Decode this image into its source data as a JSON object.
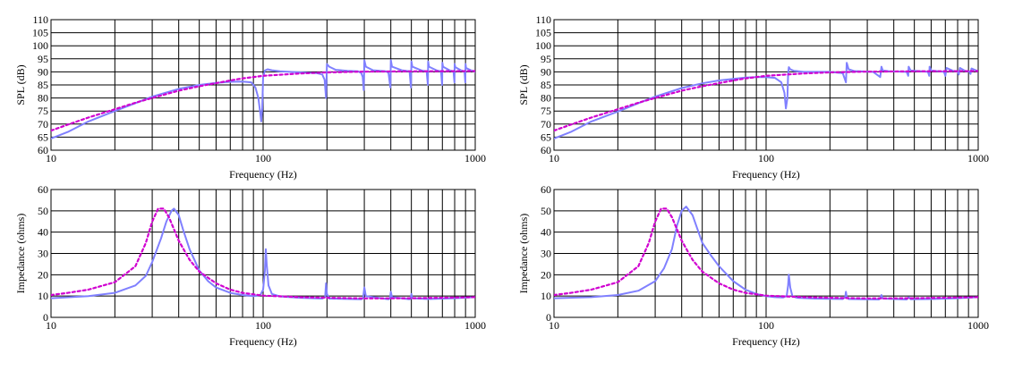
{
  "colors": {
    "solid": "#8080ff",
    "dashed": "#d000d0",
    "grid": "#000000",
    "background": "#ffffff"
  },
  "chart_data": [
    {
      "type": "line",
      "panel": "top-left",
      "xlabel": "Frequency (Hz)",
      "ylabel": "SPL (dB)",
      "xscale": "log",
      "xlim": [
        10,
        1000
      ],
      "ylim": [
        60,
        110
      ],
      "xticks": [
        10,
        100,
        1000
      ],
      "yticks": [
        60,
        65,
        70,
        75,
        80,
        85,
        90,
        95,
        100,
        105,
        110
      ],
      "grid": true,
      "series": [
        {
          "style": "solid",
          "x": [
            10,
            12,
            15,
            20,
            25,
            30,
            40,
            50,
            60,
            70,
            80,
            88,
            92,
            95,
            97,
            98,
            99,
            100,
            102,
            105,
            110,
            120,
            150,
            180,
            190,
            195,
            198,
            200,
            205,
            220,
            250,
            280,
            290,
            295,
            298,
            300,
            305,
            330,
            380,
            390,
            398,
            400,
            405,
            450,
            490,
            498,
            500,
            505,
            560,
            590,
            598,
            600,
            605,
            660,
            690,
            698,
            700,
            705,
            760,
            790,
            798,
            800,
            805,
            860,
            890,
            898,
            900,
            905,
            960,
            990,
            1000
          ],
          "y": [
            64.5,
            67,
            71,
            75,
            78,
            80.5,
            83.5,
            85,
            85.8,
            86.2,
            86.3,
            86,
            84,
            80,
            74,
            71,
            76,
            88,
            90.5,
            91,
            90.6,
            90.2,
            89.8,
            89.5,
            89,
            87,
            80,
            93,
            92,
            90.8,
            90.4,
            90.2,
            89.6,
            88,
            83,
            94.5,
            92,
            90.6,
            90.2,
            89.6,
            84,
            94.5,
            92,
            90.6,
            90.2,
            84,
            94,
            92,
            90.5,
            90.2,
            85,
            94,
            92,
            90.5,
            90.2,
            85,
            93.5,
            92,
            90.5,
            90.2,
            86,
            93,
            91.8,
            90.5,
            90.2,
            86,
            93,
            91.5,
            90.5,
            90.2,
            90
          ]
        },
        {
          "style": "dashed",
          "x": [
            10,
            12,
            15,
            20,
            25,
            30,
            40,
            50,
            60,
            70,
            80,
            100,
            150,
            200,
            300,
            500,
            1000
          ],
          "y": [
            67.5,
            69.8,
            72.5,
            75.7,
            78.2,
            80,
            82.8,
            84.5,
            85.7,
            86.7,
            87.5,
            88.5,
            89.4,
            89.8,
            90.1,
            90.2,
            90.3
          ]
        }
      ]
    },
    {
      "type": "line",
      "panel": "top-right",
      "xlabel": "Frequency (Hz)",
      "ylabel": "SPL (dB)",
      "xscale": "log",
      "xlim": [
        10,
        1000
      ],
      "ylim": [
        60,
        110
      ],
      "xticks": [
        10,
        100,
        1000
      ],
      "yticks": [
        60,
        65,
        70,
        75,
        80,
        85,
        90,
        95,
        100,
        105,
        110
      ],
      "grid": true,
      "series": [
        {
          "style": "solid",
          "x": [
            10,
            12,
            15,
            20,
            25,
            30,
            40,
            50,
            60,
            70,
            80,
            90,
            100,
            110,
            118,
            122,
            124,
            126,
            127,
            128,
            130,
            135,
            150,
            200,
            230,
            238,
            240,
            245,
            260,
            320,
            345,
            350,
            355,
            380,
            460,
            468,
            470,
            480,
            540,
            580,
            588,
            590,
            600,
            650,
            690,
            700,
            710,
            760,
            800,
            810,
            820,
            870,
            910,
            920,
            930,
            1000
          ],
          "y": [
            64.5,
            67,
            71,
            74.8,
            78,
            80.5,
            83.8,
            85.6,
            86.7,
            87.3,
            87.8,
            88,
            88,
            87.7,
            86,
            82,
            76,
            80,
            89,
            91.8,
            91,
            90.4,
            90,
            90,
            89.5,
            86,
            93.5,
            91,
            90.3,
            90,
            88,
            92,
            90.5,
            90.2,
            90,
            88.5,
            92,
            90.5,
            90.2,
            90,
            88.5,
            92,
            90.5,
            90.2,
            90,
            88.5,
            91.5,
            90.4,
            90.2,
            89,
            91.5,
            90.3,
            90.1,
            89.2,
            91.3,
            90.2
          ]
        },
        {
          "style": "dashed",
          "x": [
            10,
            12,
            15,
            20,
            25,
            30,
            40,
            50,
            60,
            70,
            80,
            100,
            150,
            200,
            300,
            500,
            1000
          ],
          "y": [
            67.5,
            69.8,
            72.5,
            75.7,
            78.2,
            80,
            82.8,
            84.5,
            85.7,
            86.7,
            87.5,
            88.5,
            89.4,
            89.8,
            90.1,
            90.2,
            90.3
          ]
        }
      ]
    },
    {
      "type": "line",
      "panel": "bottom-left",
      "xlabel": "Frequency (Hz)",
      "ylabel": "Impedance (ohms)",
      "xscale": "log",
      "xlim": [
        10,
        1000
      ],
      "ylim": [
        0,
        60
      ],
      "xticks": [
        10,
        100,
        1000
      ],
      "yticks": [
        0,
        10,
        20,
        30,
        40,
        50,
        60
      ],
      "grid": true,
      "series": [
        {
          "style": "solid",
          "x": [
            10,
            15,
            20,
            25,
            28,
            30,
            33,
            35,
            37,
            38,
            40,
            42,
            45,
            50,
            55,
            60,
            70,
            80,
            90,
            97,
            100,
            102,
            103,
            104,
            106,
            110,
            120,
            150,
            190,
            196,
            198,
            200,
            205,
            290,
            296,
            300,
            305,
            390,
            396,
            400,
            405,
            490,
            496,
            500,
            505,
            600,
            700,
            800,
            1000
          ],
          "y": [
            9,
            10,
            11.5,
            15,
            19.5,
            26,
            37,
            45,
            50,
            51,
            48,
            41,
            32,
            22,
            17,
            14,
            11.5,
            10.5,
            10,
            10.5,
            13,
            22,
            32,
            25,
            15,
            11,
            9.8,
            9.2,
            8.8,
            9.5,
            16,
            11,
            8.8,
            8.5,
            9,
            14,
            10,
            8.5,
            8.8,
            12,
            9.5,
            8.5,
            8.7,
            11,
            9,
            8.6,
            8.8,
            9,
            9.5
          ]
        },
        {
          "style": "dashed",
          "x": [
            10,
            12,
            15,
            20,
            25,
            28,
            30,
            32,
            34,
            36,
            40,
            45,
            50,
            60,
            70,
            80,
            100,
            150,
            200,
            300,
            500,
            1000
          ],
          "y": [
            10.5,
            11.5,
            13,
            16.5,
            24,
            35,
            45,
            51,
            51,
            47,
            36,
            27,
            21.5,
            16,
            13,
            11.5,
            10.2,
            9.5,
            9.2,
            8.9,
            9,
            9.5
          ]
        }
      ]
    },
    {
      "type": "line",
      "panel": "bottom-right",
      "xlabel": "Frequency (Hz)",
      "ylabel": "Impedance (ohms)",
      "xscale": "log",
      "xlim": [
        10,
        1000
      ],
      "ylim": [
        0,
        60
      ],
      "xticks": [
        10,
        100,
        1000
      ],
      "yticks": [
        0,
        10,
        20,
        30,
        40,
        50,
        60
      ],
      "grid": true,
      "series": [
        {
          "style": "solid",
          "x": [
            10,
            15,
            20,
            25,
            30,
            33,
            36,
            38,
            40,
            42,
            45,
            48,
            50,
            55,
            60,
            70,
            80,
            90,
            100,
            110,
            120,
            125,
            127,
            128,
            130,
            133,
            140,
            170,
            230,
            236,
            238,
            240,
            245,
            340,
            345,
            350,
            355,
            460,
            470,
            480,
            600,
            800,
            1000
          ],
          "y": [
            9,
            9.5,
            10.5,
            12.5,
            17,
            23,
            32,
            43,
            50,
            52,
            48,
            40,
            35,
            29,
            24,
            17,
            13,
            11,
            10,
            9.5,
            9.3,
            10,
            15,
            20,
            14,
            10,
            9.2,
            8.8,
            8.6,
            9.5,
            12,
            9.5,
            8.6,
            8.4,
            9,
            10.5,
            8.8,
            8.4,
            9.5,
            8.5,
            8.6,
            9,
            9.5
          ]
        },
        {
          "style": "dashed",
          "x": [
            10,
            12,
            15,
            20,
            25,
            28,
            30,
            32,
            34,
            36,
            40,
            45,
            50,
            60,
            70,
            80,
            100,
            150,
            200,
            300,
            500,
            1000
          ],
          "y": [
            10.5,
            11.5,
            13,
            16.5,
            24,
            35,
            45,
            51,
            51,
            47,
            36,
            27,
            21.5,
            16,
            13,
            11.5,
            10.2,
            9.5,
            9.2,
            8.9,
            9,
            9.5
          ]
        }
      ]
    }
  ]
}
